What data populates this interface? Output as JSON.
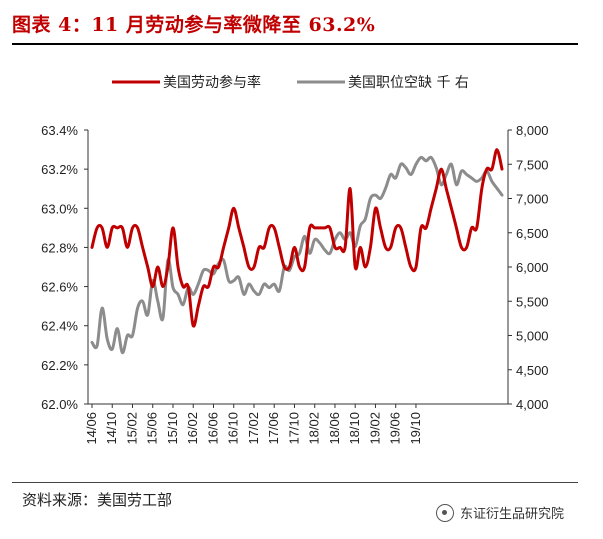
{
  "title": "图表 4：11 月劳动参与率微降至 63.2%",
  "source": "资料来源：美国劳工部",
  "watermark": "东证衍生品研究院",
  "colors": {
    "participation": "#c00000",
    "openings": "#8c8c8c",
    "title": "#c00000"
  },
  "chart_data": {
    "type": "line",
    "title": "",
    "legend_position": "top",
    "grid": false,
    "x_ticks": [
      "14/06",
      "14/10",
      "15/02",
      "15/06",
      "15/10",
      "16/02",
      "16/06",
      "16/10",
      "17/02",
      "17/06",
      "17/10",
      "18/02",
      "18/06",
      "18/10",
      "19/02",
      "19/06",
      "19/10"
    ],
    "x_start": "2014-06",
    "y_left": {
      "lim": [
        62.0,
        63.4
      ],
      "ticks": [
        "62.0%",
        "62.2%",
        "62.4%",
        "62.6%",
        "62.8%",
        "63.0%",
        "63.2%",
        "63.4%"
      ]
    },
    "y_right": {
      "lim": [
        4000,
        8000
      ],
      "ticks": [
        "4,000",
        "4,500",
        "5,000",
        "5,500",
        "6,000",
        "6,500",
        "7,000",
        "7,500",
        "8,000"
      ]
    },
    "series": [
      {
        "name": "美国劳动参与率",
        "axis": "left",
        "color": "#c00000",
        "values": [
          62.8,
          62.9,
          62.9,
          62.8,
          62.9,
          62.9,
          62.9,
          62.8,
          62.9,
          62.9,
          62.8,
          62.7,
          62.6,
          62.7,
          62.6,
          62.7,
          62.9,
          62.7,
          62.6,
          62.6,
          62.4,
          62.5,
          62.6,
          62.6,
          62.7,
          62.7,
          62.8,
          62.9,
          63.0,
          62.9,
          62.8,
          62.7,
          62.7,
          62.8,
          62.8,
          62.9,
          62.9,
          62.8,
          62.7,
          62.7,
          62.8,
          62.7,
          62.7,
          62.9,
          62.9,
          62.9,
          62.9,
          62.9,
          62.8,
          62.8,
          62.8,
          63.1,
          62.7,
          62.8,
          62.7,
          62.8,
          63.0,
          62.9,
          62.8,
          62.8,
          62.9,
          62.9,
          62.8,
          62.7,
          62.7,
          62.9,
          62.9,
          63.0,
          63.1,
          63.2,
          63.1,
          63.0,
          62.9,
          62.8,
          62.8,
          62.9,
          62.9,
          63.1,
          63.2,
          63.2,
          63.3,
          63.2
        ]
      },
      {
        "name": "美国职位空缺 千 右",
        "axis": "right",
        "color": "#8c8c8c",
        "values": [
          4900,
          4850,
          5400,
          4950,
          4800,
          5100,
          4750,
          5000,
          5000,
          5400,
          5500,
          5300,
          5800,
          5500,
          5250,
          6100,
          5700,
          5600,
          5450,
          5700,
          5600,
          5750,
          5950,
          5950,
          5900,
          6050,
          6100,
          5800,
          5800,
          5850,
          5600,
          5750,
          5650,
          5600,
          5750,
          5700,
          5750,
          5650,
          6000,
          5950,
          6150,
          6200,
          6450,
          6200,
          6400,
          6350,
          6250,
          6200,
          6400,
          6500,
          6400,
          6500,
          6300,
          6600,
          6700,
          7000,
          7050,
          7000,
          7150,
          7350,
          7300,
          7500,
          7450,
          7350,
          7500,
          7600,
          7550,
          7600,
          7450,
          7200,
          7350,
          7500,
          7200,
          7400,
          7350,
          7300,
          7250,
          7300,
          7400,
          7250,
          7150,
          7050
        ]
      }
    ]
  }
}
